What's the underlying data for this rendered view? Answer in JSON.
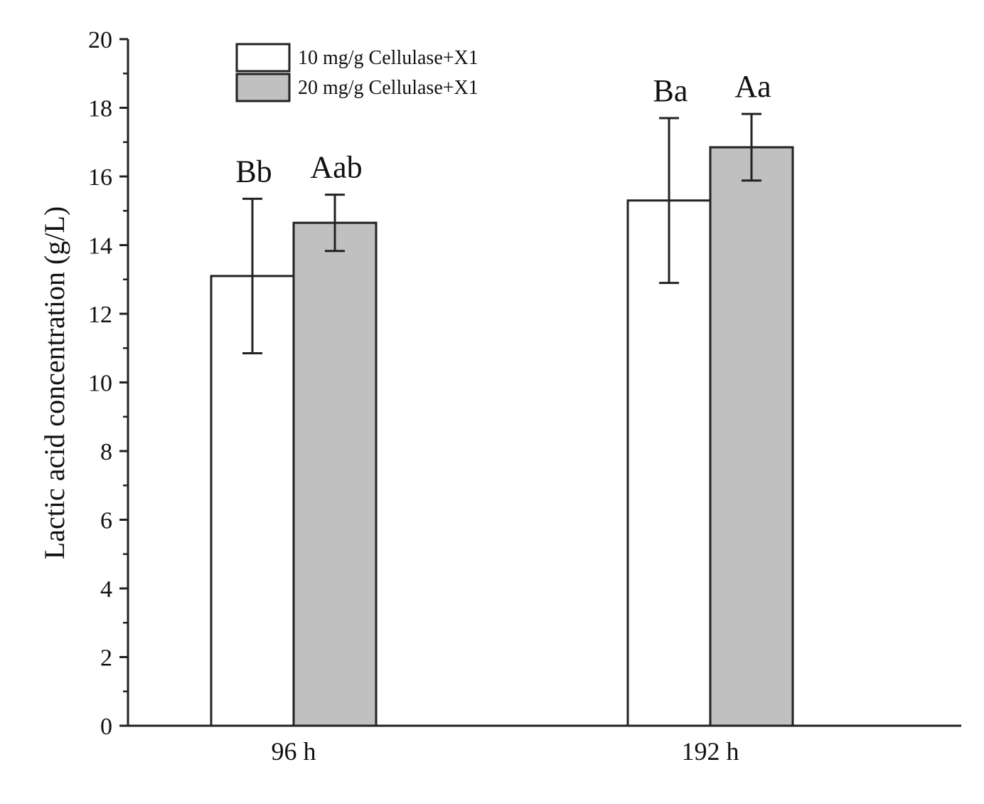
{
  "chart_data": {
    "type": "bar",
    "title": "",
    "xlabel": "",
    "ylabel": "Lactic acid concentration (g/L)",
    "ylim": [
      0,
      20
    ],
    "yticks": [
      "0",
      "2",
      "4",
      "6",
      "8",
      "10",
      "12",
      "14",
      "16",
      "18",
      "20"
    ],
    "grid": false,
    "legend_position": "top-left",
    "categories": [
      "96 h",
      "192 h"
    ],
    "series": [
      {
        "name": "10 mg/g Cellulase+X1",
        "color": "#ffffff",
        "values": [
          13.1,
          15.3
        ],
        "errors": [
          2.25,
          2.4
        ],
        "labels": [
          "Bb",
          "Ba"
        ]
      },
      {
        "name": "20 mg/g Cellulase+X1",
        "color": "#c0c0c0",
        "values": [
          14.65,
          16.85
        ],
        "errors": [
          0.82,
          0.97
        ],
        "labels": [
          "Aab",
          "Aa"
        ]
      }
    ]
  }
}
